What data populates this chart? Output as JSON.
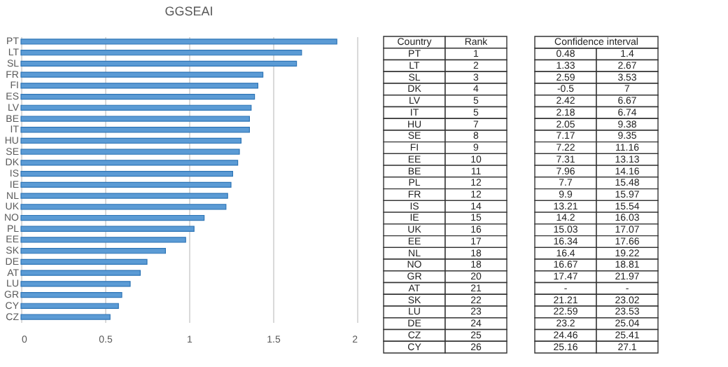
{
  "chart_data": [
    {
      "type": "bar",
      "title": "GGSEAI",
      "orientation": "horizontal",
      "categories": [
        "PT",
        "LT",
        "SL",
        "FR",
        "FI",
        "ES",
        "LV",
        "BE",
        "IT",
        "HU",
        "SE",
        "DK",
        "IS",
        "IE",
        "NL",
        "UK",
        "NO",
        "PL",
        "EE",
        "SK",
        "DE",
        "AT",
        "LU",
        "GR",
        "CY",
        "CZ"
      ],
      "values": [
        1.88,
        1.67,
        1.64,
        1.44,
        1.41,
        1.39,
        1.37,
        1.36,
        1.36,
        1.31,
        1.3,
        1.29,
        1.26,
        1.25,
        1.23,
        1.22,
        1.09,
        1.03,
        0.98,
        0.86,
        0.75,
        0.71,
        0.65,
        0.6,
        0.58,
        0.53
      ],
      "color": "#5b9bd5",
      "xlim": [
        0,
        2
      ],
      "xticks": [
        0,
        0.5,
        1,
        1.5,
        2
      ],
      "grid": "x"
    },
    {
      "type": "other",
      "annotations": [
        "Country",
        "Rank",
        "PT",
        "1",
        "LT",
        "2",
        "SL",
        "3",
        "DK",
        "4",
        "LV",
        "5",
        "IT",
        "5",
        "HU",
        "7",
        "SE",
        "8",
        "FI",
        "9",
        "EE",
        "10",
        "BE",
        "11",
        "PL",
        "12",
        "FR",
        "12",
        "IS",
        "14",
        "IE",
        "15",
        "UK",
        "16",
        "EE",
        "17",
        "NL",
        "18",
        "NO",
        "18",
        "GR",
        "20",
        "AT",
        "21",
        "SK",
        "22",
        "LU",
        "23",
        "DE",
        "24",
        "CZ",
        "25",
        "CY",
        "26"
      ]
    },
    {
      "type": "other",
      "title": "Confidence interval",
      "annotations": [
        "0.48",
        "1.4",
        "1.33",
        "2.67",
        "2.59",
        "3.53",
        "-0.5",
        "7",
        "2.42",
        "6.67",
        "2.18",
        "6.74",
        "2.05",
        "9.38",
        "7.17",
        "9.35",
        "7.22",
        "11.16",
        "7.31",
        "13.13",
        "7.96",
        "14.16",
        "7.7",
        "15.48",
        "9.9",
        "15.97",
        "13.21",
        "15.54",
        "14.2",
        "16.03",
        "15.03",
        "17.07",
        "16.34",
        "17.66",
        "16.4",
        "19.22",
        "16.67",
        "18.81",
        "17.47",
        "21.97",
        "-",
        "-",
        "21.21",
        "23.02",
        "22.59",
        "23.53",
        "23.2",
        "25.04",
        "24.46",
        "25.41",
        "25.16",
        "27.1"
      ]
    }
  ]
}
